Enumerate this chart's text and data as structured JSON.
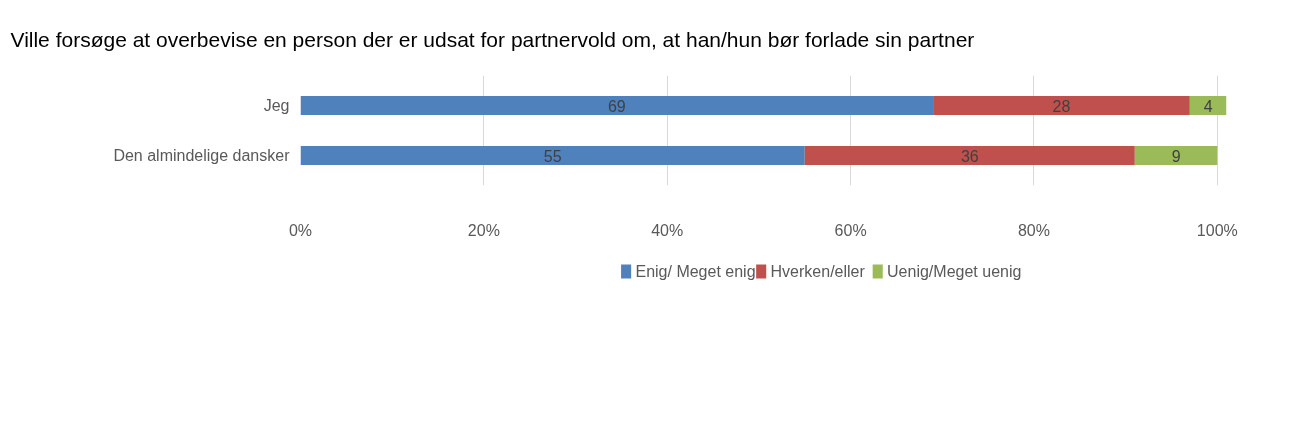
{
  "chart_data": {
    "type": "bar",
    "orientation": "horizontal",
    "stacked": true,
    "title": "Ville forsøge at overbevise en person der er udsat for partnervold om, at han/hun bør forlade sin partner",
    "categories": [
      "Jeg",
      "Den almindelige dansker"
    ],
    "series": [
      {
        "name": "Enig/ Meget enig",
        "color": "#4f81bd",
        "values": [
          69,
          55
        ]
      },
      {
        "name": "Hverken/eller",
        "color": "#c0504d",
        "values": [
          28,
          36
        ]
      },
      {
        "name": "Uenig/Meget uenig",
        "color": "#9bbb59",
        "values": [
          4,
          9
        ]
      }
    ],
    "xlim": [
      0,
      101
    ],
    "data_labels": true,
    "xticks": [
      {
        "value": 0,
        "label": "0%"
      },
      {
        "value": 20,
        "label": "20%"
      },
      {
        "value": 40,
        "label": "40%"
      },
      {
        "value": 60,
        "label": "60%"
      },
      {
        "value": 80,
        "label": "80%"
      },
      {
        "value": 100,
        "label": "100%"
      }
    ],
    "grid": "x",
    "legend": "bottom"
  }
}
